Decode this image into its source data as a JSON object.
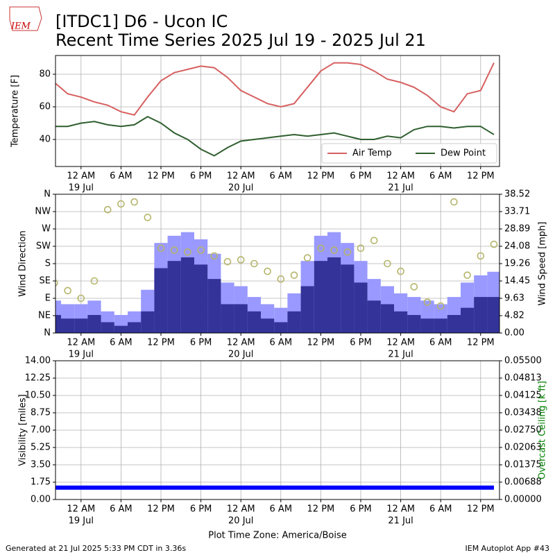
{
  "title": [
    "[ITDC1] D6 - Ucon IC",
    "Recent Time Series 2025 Jul 19 - 2025 Jul 21"
  ],
  "logo": "IEM",
  "x_label": "Plot Time Zone: America/Boise",
  "footer_left": "Generated at 21 Jul 2025 5:33 PM CDT in 3.36s",
  "footer_right": "IEM Autoplot App #43",
  "time_axis": {
    "xlim": [
      "18 Jul 20:10",
      "21 Jul 14:50"
    ],
    "xticks": [
      {
        "value": "19 Jul 00:00",
        "label": "12 AM"
      },
      {
        "value": "19 Jul 06:00",
        "label": "6 AM"
      },
      {
        "value": "19 Jul 12:00",
        "label": "12 PM"
      },
      {
        "value": "19 Jul 18:00",
        "label": "6 PM"
      },
      {
        "value": "20 Jul 00:00",
        "label": "12 AM"
      },
      {
        "value": "20 Jul 06:00",
        "label": "6 AM"
      },
      {
        "value": "20 Jul 12:00",
        "label": "12 PM"
      },
      {
        "value": "20 Jul 18:00",
        "label": "6 PM"
      },
      {
        "value": "21 Jul 00:00",
        "label": "12 AM"
      },
      {
        "value": "21 Jul 06:00",
        "label": "6 AM"
      },
      {
        "value": "21 Jul 12:00",
        "label": "12 PM"
      }
    ],
    "date_ticks": [
      {
        "value": "19 Jul 00:00",
        "label": "19 Jul"
      },
      {
        "value": "20 Jul 00:00",
        "label": "20 Jul"
      },
      {
        "value": "21 Jul 00:00",
        "label": "21 Jul"
      }
    ],
    "x": [
      "18 Jul 20:00",
      "18 Jul 22:00",
      "19 Jul 00:00",
      "19 Jul 02:00",
      "19 Jul 04:00",
      "19 Jul 06:00",
      "19 Jul 08:00",
      "19 Jul 10:00",
      "19 Jul 12:00",
      "19 Jul 14:00",
      "19 Jul 16:00",
      "19 Jul 18:00",
      "19 Jul 20:00",
      "19 Jul 22:00",
      "20 Jul 00:00",
      "20 Jul 02:00",
      "20 Jul 04:00",
      "20 Jul 06:00",
      "20 Jul 08:00",
      "20 Jul 10:00",
      "20 Jul 12:00",
      "20 Jul 14:00",
      "20 Jul 16:00",
      "20 Jul 18:00",
      "20 Jul 20:00",
      "20 Jul 22:00",
      "21 Jul 00:00",
      "21 Jul 02:00",
      "21 Jul 04:00",
      "21 Jul 06:00",
      "21 Jul 08:00",
      "21 Jul 10:00",
      "21 Jul 12:00",
      "21 Jul 14:00"
    ]
  },
  "chart_data": [
    {
      "type": "line",
      "ylabel": "Temperature [F]",
      "ylim": [
        23.4,
        91.5
      ],
      "yticks": [
        40,
        60,
        80
      ],
      "grid": true,
      "legend": "lower right",
      "series": [
        {
          "name": "Air Temp",
          "color": "#d65f5f",
          "values": [
            75,
            68,
            66,
            63,
            61,
            57,
            55,
            66,
            76,
            81,
            83,
            85,
            84,
            78,
            70,
            66,
            62,
            60,
            62,
            72,
            82,
            87,
            87,
            86,
            82,
            77,
            75,
            72,
            67,
            60,
            57,
            68,
            70,
            87
          ]
        },
        {
          "name": "Dew Point",
          "color": "#2e5e2e",
          "values": [
            48,
            48,
            50,
            51,
            49,
            48,
            49,
            54,
            50,
            44,
            40,
            34,
            30,
            35,
            39,
            40,
            41,
            42,
            43,
            42,
            43,
            44,
            42,
            40,
            40,
            42,
            41,
            46,
            48,
            48,
            47,
            48,
            48,
            43
          ]
        }
      ]
    },
    {
      "type": "combo",
      "ylabel": "Wind Direction",
      "y2label": "Wind Speed [mph]",
      "ylim": [
        0,
        360
      ],
      "yticks": [
        {
          "value": 0,
          "label": "N"
        },
        {
          "value": 45,
          "label": "NE"
        },
        {
          "value": 90,
          "label": "E"
        },
        {
          "value": 135,
          "label": "SE"
        },
        {
          "value": 180,
          "label": "S"
        },
        {
          "value": 225,
          "label": "SW"
        },
        {
          "value": 270,
          "label": "W"
        },
        {
          "value": 315,
          "label": "NW"
        },
        {
          "value": 360,
          "label": "N"
        }
      ],
      "y2lim": [
        0,
        38.52
      ],
      "y2ticks": [
        {
          "value": 0,
          "label": "0.00"
        },
        4.82,
        9.63,
        14.45,
        19.26,
        24.08,
        28.89,
        33.71,
        38.52
      ],
      "grid": true,
      "series": [
        {
          "type": "bar",
          "axis": "y2",
          "color": "#9999ff",
          "values": [
            9,
            8,
            8,
            9,
            6,
            5,
            6,
            12,
            25,
            27,
            28,
            26,
            22,
            14,
            13,
            10,
            8,
            7,
            11,
            20,
            27,
            28,
            25,
            20,
            15,
            13,
            11,
            10,
            9,
            8,
            10,
            14,
            16,
            17
          ]
        },
        {
          "type": "bar",
          "axis": "y2",
          "color": "#333399",
          "values": [
            5,
            4,
            4,
            5,
            3,
            2,
            3,
            6,
            18,
            20,
            21,
            19,
            15,
            8,
            8,
            6,
            4,
            3,
            6,
            13,
            20,
            21,
            19,
            14,
            9,
            8,
            6,
            5,
            4,
            4,
            5,
            7,
            10,
            10
          ]
        },
        {
          "type": "scatter",
          "axis": "y",
          "color": "#b5b56a",
          "values": [
            130,
            110,
            90,
            135,
            320,
            335,
            340,
            300,
            220,
            215,
            210,
            215,
            200,
            185,
            190,
            180,
            160,
            140,
            150,
            195,
            220,
            215,
            210,
            220,
            240,
            180,
            160,
            120,
            80,
            70,
            340,
            150,
            200,
            230
          ]
        }
      ]
    },
    {
      "type": "scatter",
      "ylabel": "Visibility [miles]",
      "y2label": "Overcast Ceiling [k ft]",
      "y2color": "#008000",
      "ylim": [
        0,
        14
      ],
      "yticks": [
        {
          "value": 0,
          "label": "0.00"
        },
        1.75,
        {
          "value": 3.5,
          "label": "3.50"
        },
        5.25,
        {
          "value": 7,
          "label": "7.00"
        },
        8.75,
        {
          "value": 10.5,
          "label": "10.50"
        },
        12.25,
        {
          "value": 14,
          "label": "14.00"
        }
      ],
      "y2lim": [
        0,
        0.055
      ],
      "y2ticks": [
        {
          "value": 0,
          "label": "0.00000"
        },
        0.00688,
        0.01375,
        0.02063,
        {
          "value": 0.0275,
          "label": "0.02750"
        },
        0.03438,
        0.04125,
        0.04813,
        {
          "value": 0.055,
          "label": "0.05500"
        }
      ],
      "grid": true,
      "series": [
        {
          "type": "line",
          "axis": "y",
          "color": "#0000ff",
          "values": [
            1.2,
            1.2,
            1.2,
            1.2,
            1.2,
            1.2,
            1.2,
            1.2,
            1.2,
            1.2,
            1.2,
            1.2,
            1.2,
            1.2,
            1.2,
            1.2,
            1.2,
            1.2,
            1.2,
            1.2,
            1.2,
            1.2,
            1.2,
            1.2,
            1.2,
            1.2,
            1.2,
            1.2,
            1.2,
            1.2,
            1.2,
            1.2,
            1.2,
            1.2
          ]
        }
      ]
    }
  ]
}
